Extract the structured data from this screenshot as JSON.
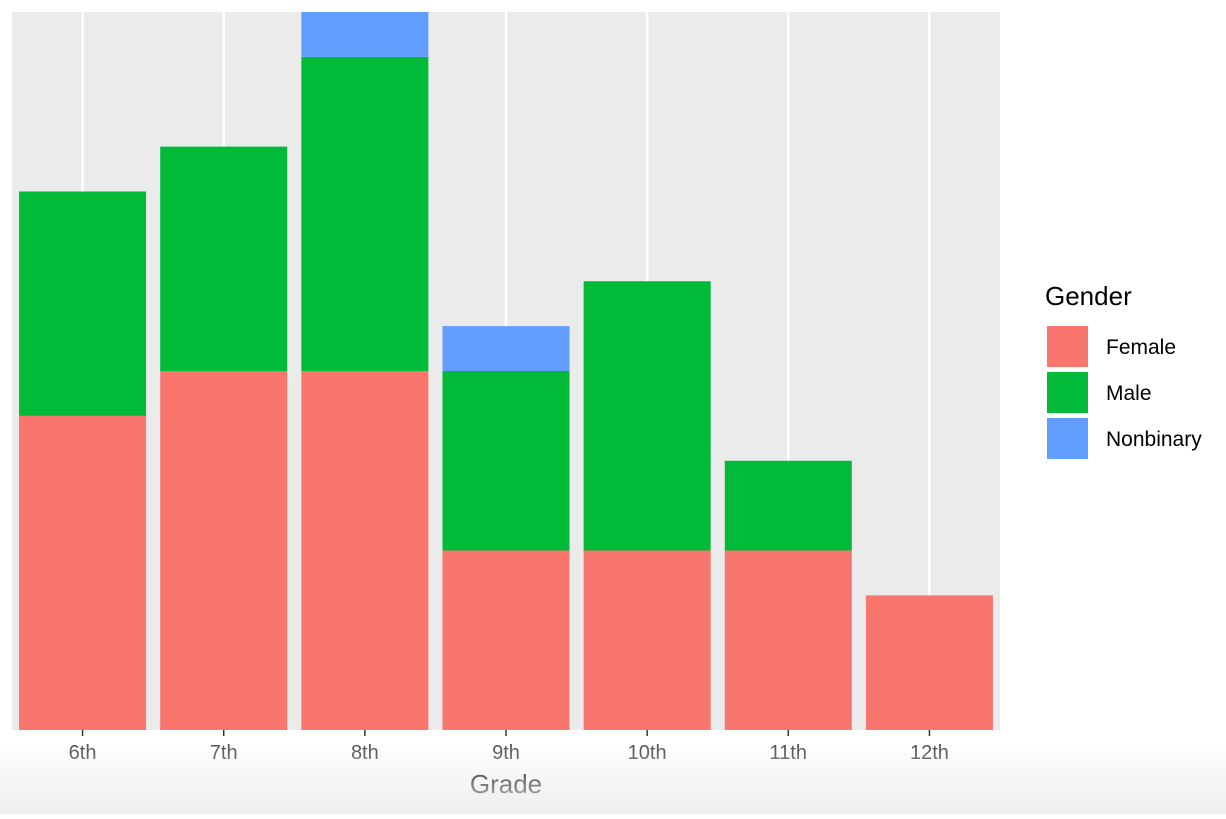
{
  "chart_data": {
    "type": "bar",
    "stacked": true,
    "title": "",
    "xlabel": "Grade",
    "ylabel": "",
    "ylim": [
      0,
      16
    ],
    "categories": [
      "6th",
      "7th",
      "8th",
      "9th",
      "10th",
      "11th",
      "12th"
    ],
    "series": [
      {
        "name": "Female",
        "color": "#F8766D",
        "values": [
          7,
          8,
          8,
          4,
          4,
          4,
          3
        ]
      },
      {
        "name": "Male",
        "color": "#00BA38",
        "values": [
          5,
          5,
          7,
          4,
          6,
          2,
          0
        ]
      },
      {
        "name": "Nonbinary",
        "color": "#619CFF",
        "values": [
          0,
          0,
          1,
          1,
          0,
          0,
          0
        ]
      }
    ],
    "legend": {
      "title": "Gender",
      "position": "right"
    },
    "panel_background": "#EBEBEB",
    "grid": true
  }
}
